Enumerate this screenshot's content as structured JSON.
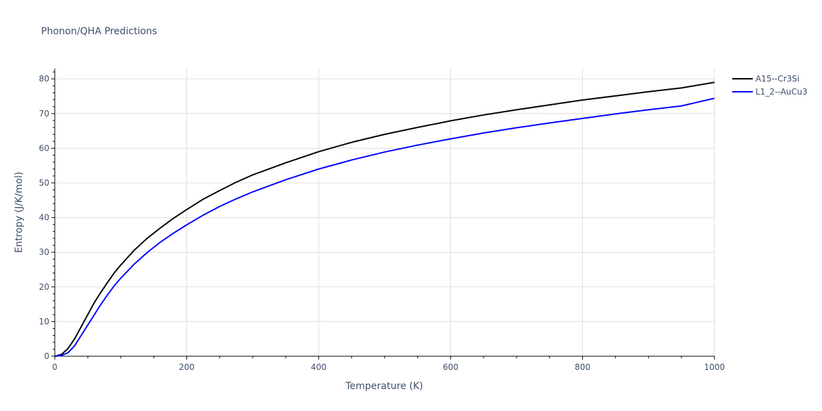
{
  "chart_data": {
    "type": "line",
    "title": "Phonon/QHA Predictions",
    "xlabel": "Temperature (K)",
    "ylabel": "Entropy (J/K/mol)",
    "xlim": [
      0,
      1000
    ],
    "ylim": [
      0,
      83
    ],
    "x_ticks": [
      0,
      200,
      400,
      600,
      800,
      1000
    ],
    "y_ticks": [
      0,
      10,
      20,
      30,
      40,
      50,
      60,
      70,
      80
    ],
    "grid": true,
    "legend_position": "top-right",
    "series": [
      {
        "name": "A15--Cr3Si",
        "color": "#000000",
        "x": [
          0,
          10,
          20,
          30,
          40,
          50,
          60,
          70,
          80,
          90,
          100,
          120,
          140,
          160,
          180,
          200,
          225,
          250,
          275,
          300,
          350,
          400,
          450,
          500,
          550,
          600,
          650,
          700,
          750,
          800,
          850,
          900,
          950,
          1000
        ],
        "y": [
          0,
          0.5,
          2.2,
          5.0,
          8.5,
          12.0,
          15.5,
          18.5,
          21.3,
          24.0,
          26.3,
          30.5,
          34.0,
          37.0,
          39.8,
          42.3,
          45.3,
          47.8,
          50.2,
          52.3,
          55.8,
          59.0,
          61.7,
          64.0,
          66.0,
          67.9,
          69.6,
          71.1,
          72.5,
          73.9,
          75.1,
          76.3,
          77.4,
          79.0
        ]
      },
      {
        "name": "L1_2--AuCu3",
        "color": "#0000ff",
        "x": [
          0,
          10,
          20,
          30,
          40,
          50,
          60,
          70,
          80,
          90,
          100,
          120,
          140,
          160,
          180,
          200,
          225,
          250,
          275,
          300,
          350,
          400,
          450,
          500,
          550,
          600,
          650,
          700,
          750,
          800,
          850,
          900,
          950,
          1000
        ],
        "y": [
          0,
          0.2,
          1.0,
          3.0,
          6.0,
          9.0,
          12.0,
          15.0,
          17.7,
          20.3,
          22.5,
          26.5,
          29.9,
          32.9,
          35.5,
          37.9,
          40.7,
          43.2,
          45.4,
          47.4,
          50.9,
          54.0,
          56.6,
          58.9,
          60.9,
          62.7,
          64.4,
          65.9,
          67.3,
          68.6,
          69.9,
          71.1,
          72.2,
          74.4
        ]
      }
    ]
  }
}
